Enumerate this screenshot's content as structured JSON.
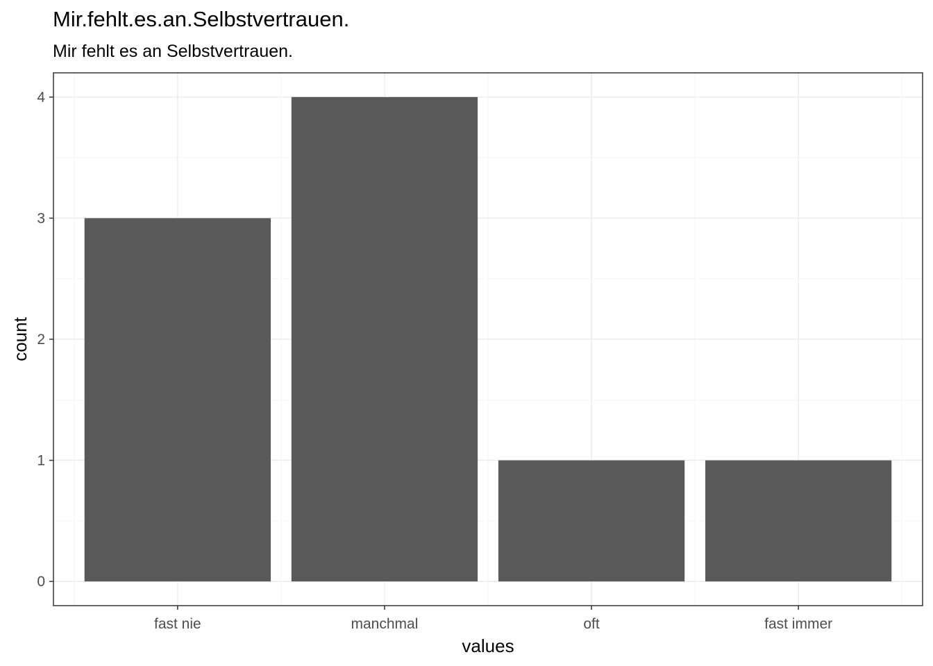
{
  "chart_data": {
    "type": "bar",
    "title": "Mir.fehlt.es.an.Selbstvertrauen.",
    "subtitle": "Mir fehlt es an Selbstvertrauen.",
    "xlabel": "values",
    "ylabel": "count",
    "categories": [
      "fast nie",
      "manchmal",
      "oft",
      "fast immer"
    ],
    "values": [
      3,
      4,
      1,
      1
    ],
    "ylim": [
      -0.2,
      4.2
    ],
    "yticks": [
      "0",
      "1",
      "2",
      "3",
      "4"
    ],
    "grid": true,
    "bar_color": "#595959",
    "grid_major_color": "#ebebeb",
    "grid_minor_color": "#f5f5f5",
    "panel_border_color": "#333333"
  }
}
